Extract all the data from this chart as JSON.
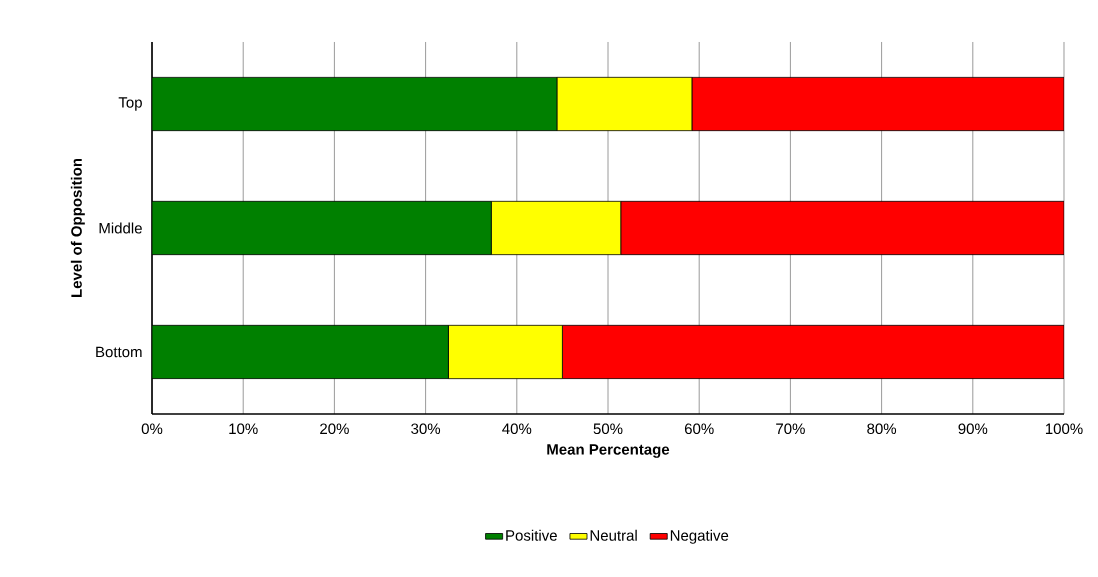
{
  "chart_data": {
    "type": "bar",
    "orientation": "horizontal",
    "stacked": true,
    "xlabel": "Mean Percentage",
    "ylabel": "Level of Opposition",
    "categories": [
      "Top",
      "Middle",
      "Bottom"
    ],
    "series": [
      {
        "name": "Positive",
        "color": "#008000",
        "values": [
          44.4,
          37.2,
          32.5
        ]
      },
      {
        "name": "Neutral",
        "color": "#ffff00",
        "values": [
          14.8,
          14.2,
          12.5
        ]
      },
      {
        "name": "Negative",
        "color": "#ff0000",
        "values": [
          40.8,
          48.6,
          55.0
        ]
      }
    ],
    "xlim": [
      0,
      100
    ],
    "xticks": [
      {
        "value": 0,
        "label": "0%"
      },
      {
        "value": 10,
        "label": "10%"
      },
      {
        "value": 20,
        "label": "20%"
      },
      {
        "value": 30,
        "label": "30%"
      },
      {
        "value": 40,
        "label": "40%"
      },
      {
        "value": 50,
        "label": "50%"
      },
      {
        "value": 60,
        "label": "60%"
      },
      {
        "value": 70,
        "label": "70%"
      },
      {
        "value": 80,
        "label": "80%"
      },
      {
        "value": 90,
        "label": "90%"
      },
      {
        "value": 100,
        "label": "100%"
      }
    ],
    "grid": "x",
    "legend": "bottom"
  }
}
